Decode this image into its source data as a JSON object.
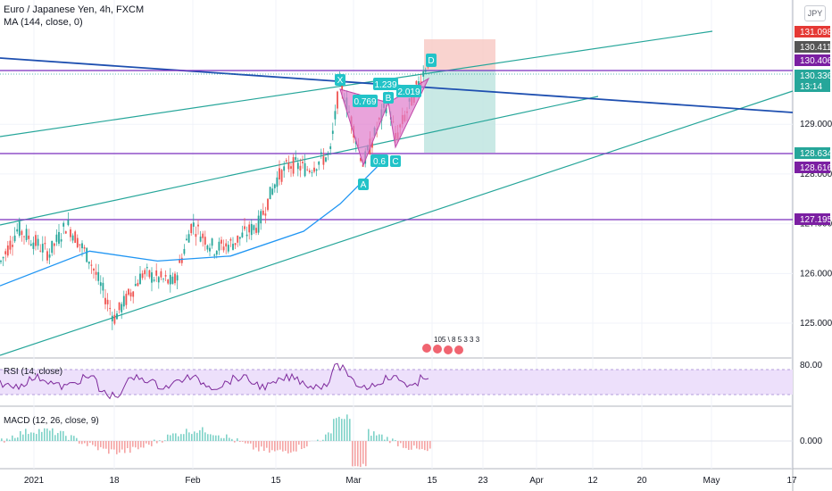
{
  "header": {
    "symbol_line": "Euro / Japanese Yen, 4h, FXCM",
    "ma_line": "MA (144, close, 0)",
    "currency": "JPY"
  },
  "panes": {
    "rsi_label": "RSI (14, close)",
    "rsi_level": "80.00",
    "macd_label": "MACD (12, 26, close, 9)",
    "macd_level": "0.000"
  },
  "price_axis": {
    "ticks": [
      "129.000",
      "128.000",
      "127.000",
      "126.000",
      "125.000"
    ],
    "tags": [
      {
        "label": "131.098",
        "color": "#e53935"
      },
      {
        "label": "130.411",
        "color": "#555555"
      },
      {
        "label": "130.406",
        "color": "#7b1fa2"
      },
      {
        "label": "130.336",
        "color": "#26a69a"
      },
      {
        "label": "13:14",
        "color": "#26a69a"
      },
      {
        "label": "128.634",
        "color": "#26a69a"
      },
      {
        "label": "128.616",
        "color": "#7b1fa2"
      },
      {
        "label": "127.195",
        "color": "#7b1fa2"
      }
    ]
  },
  "time_axis": {
    "labels": [
      "2021",
      "18",
      "Feb",
      "15",
      "Mar",
      "15",
      "23",
      "Apr",
      "12",
      "20",
      "May",
      "17"
    ]
  },
  "pattern": {
    "points": [
      "X",
      "A",
      "B",
      "C",
      "D"
    ],
    "ratios": [
      "0.769",
      "1.239",
      "0.6",
      "2.019"
    ]
  },
  "events_label": "105 \\ 8 5 3 3 3",
  "chart_data": {
    "type": "line",
    "title": "Euro / Japanese Yen, 4h, FXCM",
    "xlabel": "",
    "ylabel": "",
    "ylim": [
      124.3,
      131.5
    ],
    "grid": true,
    "series": [
      {
        "name": "MA (144, close, 0)",
        "x": [
          "2021-01-01",
          "2021-01-12",
          "2021-01-25",
          "2021-02-08",
          "2021-02-22",
          "2021-03-01",
          "2021-03-10"
        ],
        "values": [
          125.75,
          126.45,
          126.25,
          126.35,
          126.85,
          127.4,
          128.35
        ]
      }
    ],
    "levels": [
      130.406,
      128.616,
      127.195
    ],
    "harmonic_points": {
      "X": 129.95,
      "A": 128.0,
      "B": 129.55,
      "C": 128.6,
      "D": 130.41
    },
    "position": {
      "stop": 131.098,
      "entry": 130.411,
      "target": 128.634
    }
  }
}
